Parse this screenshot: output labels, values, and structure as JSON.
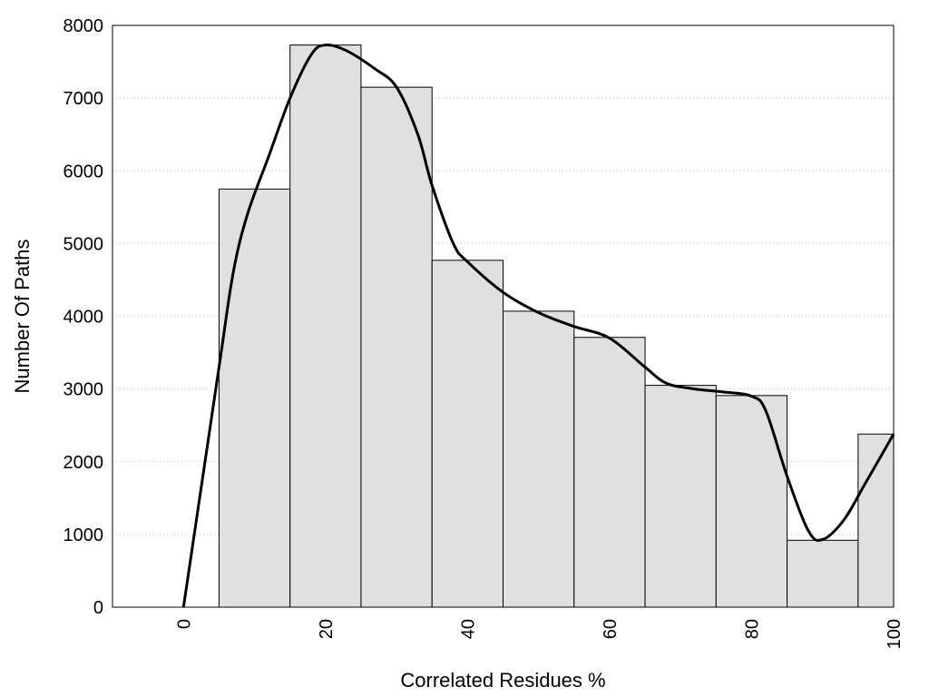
{
  "chart_data": {
    "type": "bar",
    "xlabel": "Correlated Residues %",
    "ylabel": "Number Of Paths",
    "xlim": [
      -10,
      100
    ],
    "ylim": [
      0,
      8000
    ],
    "x_ticks": [
      "0",
      "20",
      "40",
      "60",
      "80",
      "100"
    ],
    "y_ticks": [
      "0",
      "1000",
      "2000",
      "3000",
      "4000",
      "5000",
      "6000",
      "7000",
      "8000"
    ],
    "grid": "horizontal dotted",
    "bin_width": 10,
    "bins": [
      {
        "center": 10,
        "value": 5750
      },
      {
        "center": 20,
        "value": 7730
      },
      {
        "center": 30,
        "value": 7150
      },
      {
        "center": 40,
        "value": 4770
      },
      {
        "center": 50,
        "value": 4070
      },
      {
        "center": 60,
        "value": 3710
      },
      {
        "center": 70,
        "value": 3050
      },
      {
        "center": 80,
        "value": 2910
      },
      {
        "center": 90,
        "value": 920
      },
      {
        "center": 100,
        "value": 2380
      }
    ],
    "bar_color": "#e0e0e0",
    "curve": {
      "type": "smooth line",
      "color": "#000000",
      "points": [
        [
          0,
          0
        ],
        [
          5,
          3300
        ],
        [
          7,
          4600
        ],
        [
          9,
          5400
        ],
        [
          12,
          6200
        ],
        [
          15,
          7000
        ],
        [
          18,
          7600
        ],
        [
          20,
          7730
        ],
        [
          23,
          7650
        ],
        [
          27,
          7400
        ],
        [
          30,
          7150
        ],
        [
          33,
          6500
        ],
        [
          35,
          5800
        ],
        [
          38,
          5000
        ],
        [
          40,
          4750
        ],
        [
          45,
          4330
        ],
        [
          50,
          4050
        ],
        [
          55,
          3860
        ],
        [
          60,
          3700
        ],
        [
          65,
          3300
        ],
        [
          68,
          3080
        ],
        [
          72,
          3000
        ],
        [
          76,
          2960
        ],
        [
          80,
          2900
        ],
        [
          82,
          2700
        ],
        [
          85,
          1800
        ],
        [
          88,
          1050
        ],
        [
          90,
          930
        ],
        [
          93,
          1200
        ],
        [
          96,
          1700
        ],
        [
          100,
          2380
        ]
      ]
    }
  }
}
